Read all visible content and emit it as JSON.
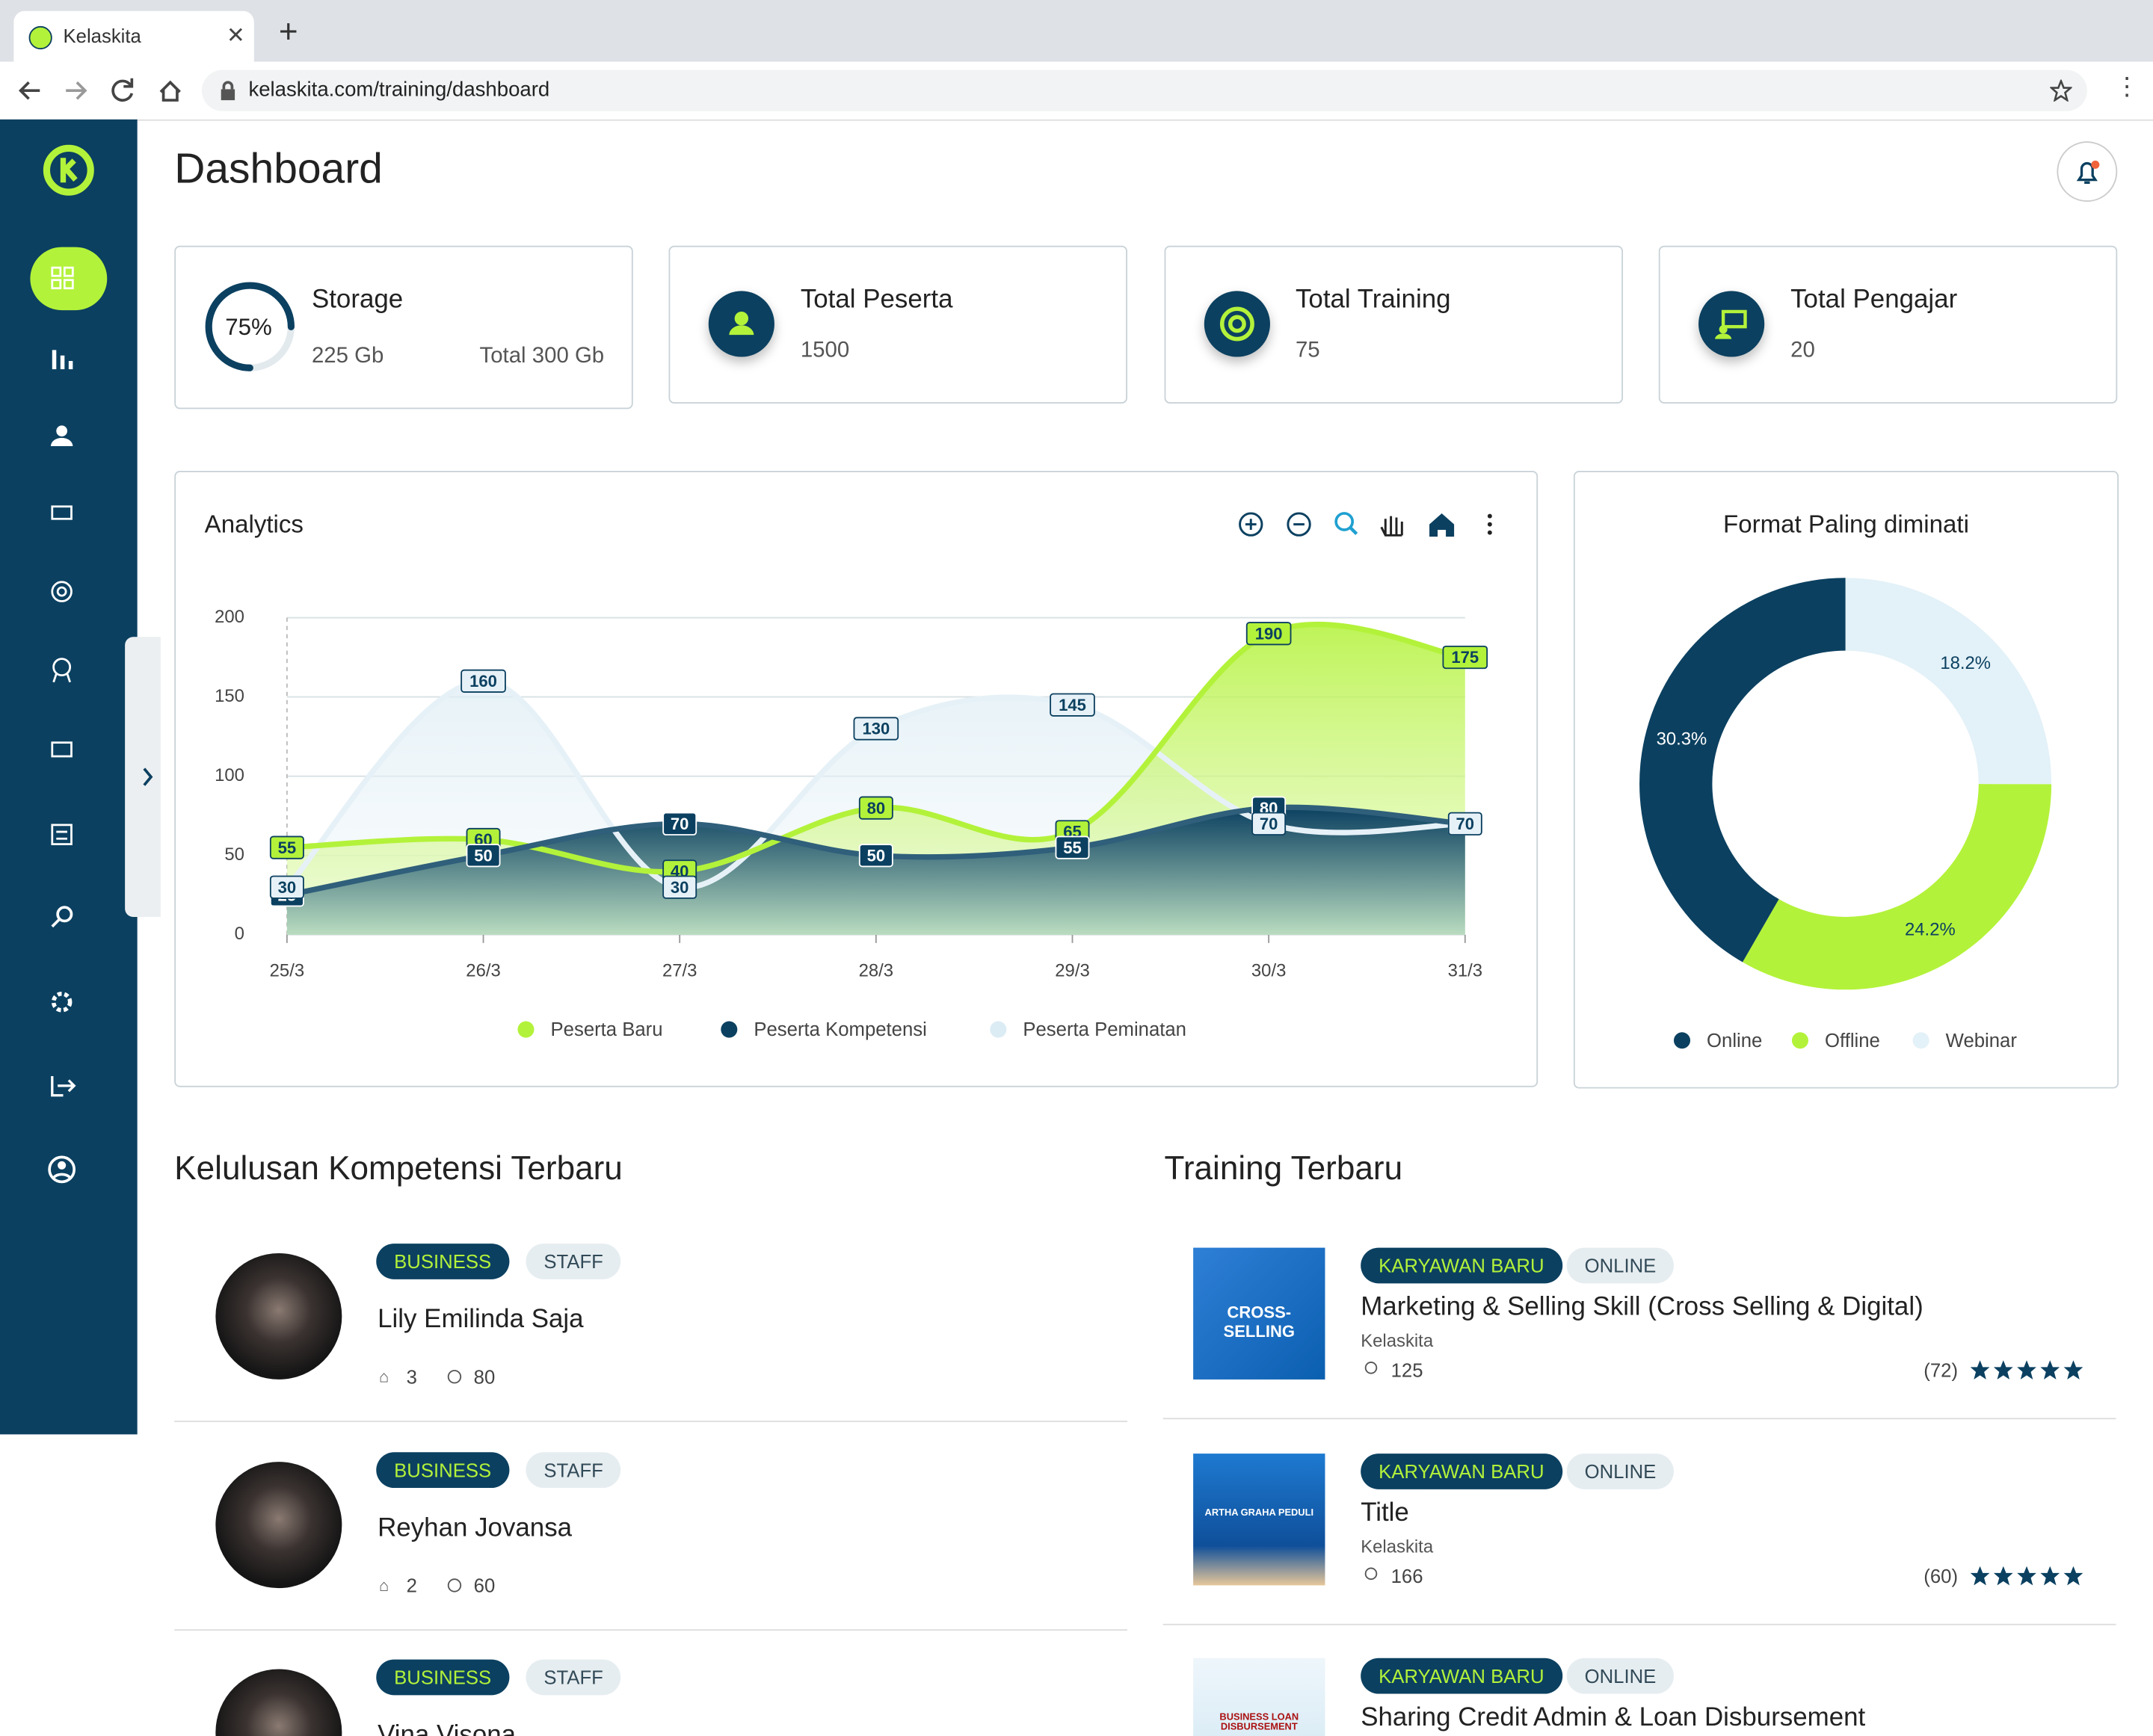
{
  "browser": {
    "tab_title": "Kelaskita",
    "url": "kelaskita.com/training/dashboard"
  },
  "header": {
    "title": "Dashboard"
  },
  "stats": {
    "storage": {
      "label": "Storage",
      "progress": {
        "value": 75,
        "label": "75%"
      },
      "used": "225 Gb",
      "total": "Total 300 Gb"
    },
    "cards": [
      {
        "label": "Total Peserta",
        "value": "1500"
      },
      {
        "label": "Total Training",
        "value": "75"
      },
      {
        "label": "Total Pengajar",
        "value": "20"
      }
    ]
  },
  "analytics": {
    "type": "area",
    "title": "Analytics",
    "categories": [
      "25/3",
      "26/3",
      "27/3",
      "28/3",
      "29/3",
      "30/3",
      "31/3"
    ],
    "ylim": [
      0,
      200
    ],
    "yticks": [
      0,
      50,
      100,
      150,
      200
    ],
    "series": [
      {
        "name": "Peserta Baru",
        "color": "#b3f23a",
        "values": [
          55,
          60,
          40,
          80,
          65,
          190,
          175
        ]
      },
      {
        "name": "Peserta Kompetensi",
        "color": "#0b4060",
        "values": [
          25,
          50,
          70,
          50,
          55,
          80,
          70
        ]
      },
      {
        "name": "Peserta Peminatan",
        "color": "#dcecf4",
        "values": [
          30,
          160,
          30,
          130,
          145,
          70,
          70
        ]
      }
    ]
  },
  "format": {
    "type": "donut",
    "title": "Format Paling diminati",
    "categories": [
      "Online",
      "Offline",
      "Webinar"
    ],
    "values": [
      30.3,
      24.2,
      18.2
    ],
    "value_labels": [
      "30.3%",
      "24.2%",
      "18.2%"
    ],
    "colors": [
      "#0b4060",
      "#b3f23a",
      "#e3f1f8"
    ]
  },
  "kelulusan": {
    "title": "Kelulusan Kompetensi Terbaru",
    "items": [
      {
        "tags": [
          "BUSINESS",
          "STAFF"
        ],
        "name": "Lily Emilinda Saja",
        "courses": "3",
        "points": "80"
      },
      {
        "tags": [
          "BUSINESS",
          "STAFF"
        ],
        "name": "Reyhan Jovansa",
        "courses": "2",
        "points": "60"
      },
      {
        "tags": [
          "BUSINESS",
          "STAFF"
        ],
        "name": "Vina Visona"
      }
    ]
  },
  "training": {
    "title": "Training Terbaru",
    "items": [
      {
        "tags": [
          "KARYAWAN BARU",
          "ONLINE"
        ],
        "title": "Marketing & Selling Skill (Cross Selling & Digital)",
        "provider": "Kelaskita",
        "participants": "125",
        "reviews": "(72)",
        "thumb": "CROSS-SELLING"
      },
      {
        "tags": [
          "KARYAWAN BARU",
          "ONLINE"
        ],
        "title": "Title",
        "provider": "Kelaskita",
        "participants": "166",
        "reviews": "(60)",
        "thumb": "ARTHA GRAHA PEDULI"
      },
      {
        "tags": [
          "KARYAWAN BARU",
          "ONLINE"
        ],
        "title": "Sharing Credit Admin & Loan Disbursement",
        "thumb": "BUSINESS LOAN DISBURSEMENT"
      }
    ]
  }
}
